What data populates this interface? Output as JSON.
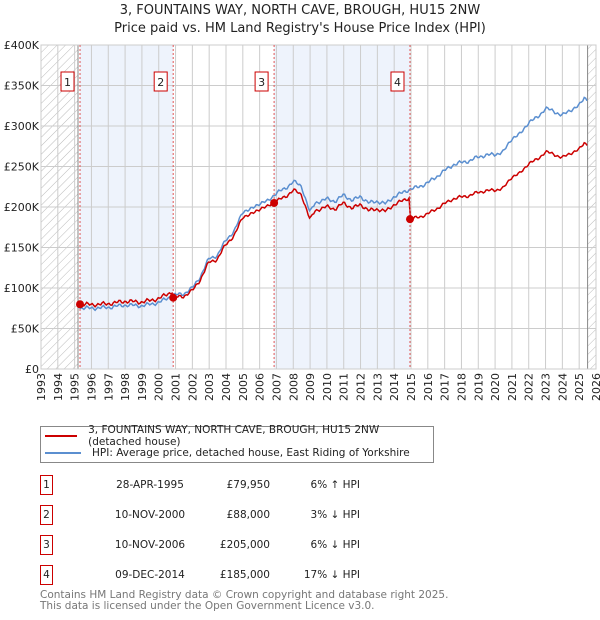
{
  "chart_data": {
    "type": "line",
    "title": "3, FOUNTAINS WAY, NORTH CAVE, BROUGH, HU15 2NW",
    "subtitle": "Price paid vs. HM Land Registry's House Price Index (HPI)",
    "xlim": [
      1993,
      2026
    ],
    "ylim": [
      0,
      400000
    ],
    "y_ticks": [
      0,
      50000,
      100000,
      150000,
      200000,
      250000,
      300000,
      350000,
      400000
    ],
    "y_tick_labels": [
      "£0",
      "£50K",
      "£100K",
      "£150K",
      "£200K",
      "£250K",
      "£300K",
      "£350K",
      "£400K"
    ],
    "x_tick_labels": [
      "1993",
      "1994",
      "1995",
      "1996",
      "1997",
      "1998",
      "1999",
      "2000",
      "2001",
      "2002",
      "2003",
      "2004",
      "2005",
      "2006",
      "2007",
      "2008",
      "2009",
      "2010",
      "2011",
      "2012",
      "2013",
      "2014",
      "2015",
      "2016",
      "2017",
      "2018",
      "2019",
      "2020",
      "2021",
      "2022",
      "2023",
      "2024",
      "2025",
      "2026"
    ],
    "grid": true,
    "colors": {
      "property": "#cc0000",
      "hpi": "#5b8fd0",
      "band": "#eef3fc"
    },
    "hpi_series": {
      "name": "HPI: Average price, detached house, East Riding of Yorkshire",
      "x": [
        1995.3,
        1996,
        1997,
        1998,
        1999,
        2000,
        2000.86,
        2001.5,
        2002,
        2002.5,
        2003,
        2003.5,
        2004,
        2004.5,
        2005,
        2005.5,
        2006,
        2006.5,
        2007,
        2007.5,
        2008,
        2008.5,
        2009,
        2009.3,
        2010,
        2010.5,
        2011,
        2011.5,
        2012,
        2012.5,
        2013,
        2013.5,
        2014,
        2014.94,
        2015.5,
        2016,
        2016.5,
        2017,
        2017.5,
        2018,
        2018.5,
        2019,
        2019.5,
        2020,
        2020.5,
        2021,
        2021.5,
        2022,
        2022.5,
        2023,
        2023.5,
        2024,
        2024.5,
        2025,
        2025.3,
        2025.5
      ],
      "y": [
        75500,
        75000,
        76000,
        79000,
        78000,
        82000,
        91000,
        93000,
        100000,
        115000,
        137000,
        140000,
        160000,
        170000,
        195000,
        197000,
        205000,
        207000,
        218000,
        222000,
        232000,
        225000,
        193000,
        205000,
        210000,
        207000,
        215000,
        208000,
        213000,
        205000,
        207000,
        204000,
        213000,
        222000,
        225000,
        230000,
        237000,
        245000,
        252000,
        255000,
        257000,
        262000,
        264000,
        265000,
        268000,
        285000,
        290000,
        305000,
        310000,
        322000,
        318000,
        313000,
        320000,
        325000,
        335000,
        333000
      ]
    },
    "property_series": {
      "name": "3, FOUNTAINS WAY, NORTH CAVE, BROUGH, HU15 2NW (detached house)",
      "method": "HPI indexed from each sale"
    },
    "sales": [
      {
        "n": "1",
        "x": 1995.32,
        "date": "28-APR-1995",
        "price": 79950,
        "price_label": "£79,950",
        "hpi": "6% ↑ HPI"
      },
      {
        "n": "2",
        "x": 2000.86,
        "date": "10-NOV-2000",
        "price": 88000,
        "price_label": "£88,000",
        "hpi": "3% ↓ HPI"
      },
      {
        "n": "3",
        "x": 2006.86,
        "date": "10-NOV-2006",
        "price": 205000,
        "price_label": "£205,000",
        "hpi": "6% ↓ HPI"
      },
      {
        "n": "4",
        "x": 2014.94,
        "date": "09-DEC-2014",
        "price": 185000,
        "price_label": "£185,000",
        "hpi": "17% ↓ HPI"
      }
    ],
    "shaded_ranges": [
      [
        1995.32,
        2000.86
      ],
      [
        2006.86,
        2014.94
      ]
    ],
    "data_range": [
      1995.2,
      2025.5
    ]
  },
  "legend": {
    "property": "3, FOUNTAINS WAY, NORTH CAVE, BROUGH, HU15 2NW (detached house)",
    "hpi": "HPI: Average price, detached house, East Riding of Yorkshire"
  },
  "footer": {
    "line1": "Contains HM Land Registry data © Crown copyright and database right 2025.",
    "line2": "This data is licensed under the Open Government Licence v3.0."
  }
}
